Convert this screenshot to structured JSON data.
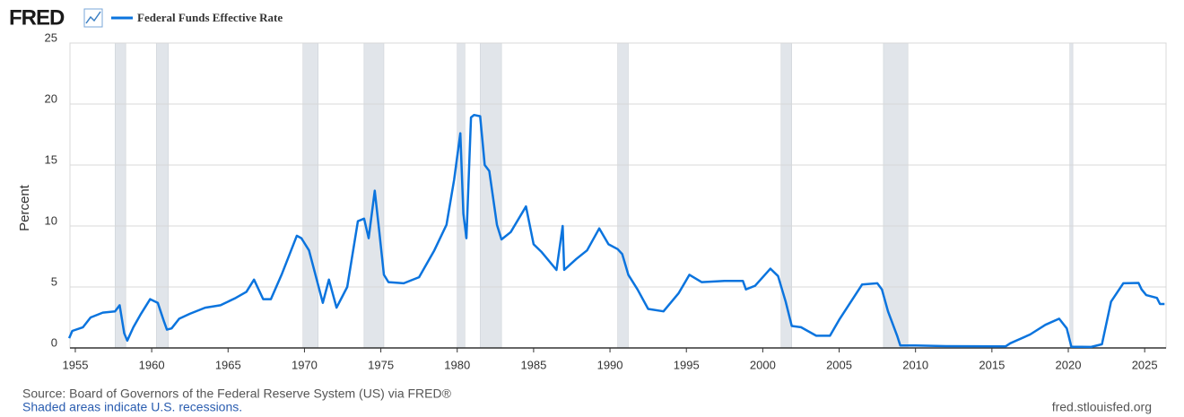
{
  "logo": "FRED",
  "chart_data": {
    "type": "line",
    "y_label": "Percent",
    "xlim": [
      1954.65,
      2026.4
    ],
    "ylim": [
      0,
      25
    ],
    "xticks": [
      1955,
      1960,
      1965,
      1970,
      1975,
      1980,
      1985,
      1990,
      1995,
      2000,
      2005,
      2010,
      2015,
      2020,
      2025
    ],
    "yticks": [
      0,
      5,
      10,
      15,
      20,
      25
    ],
    "grid": true,
    "recessions": [
      [
        1957.6,
        1958.3
      ],
      [
        1960.3,
        1961.1
      ],
      [
        1969.9,
        1970.9
      ],
      [
        1973.9,
        1975.2
      ],
      [
        1980.0,
        1980.5
      ],
      [
        1981.5,
        1982.9
      ],
      [
        1990.5,
        1991.2
      ],
      [
        2001.2,
        2001.9
      ],
      [
        2007.9,
        2009.5
      ],
      [
        2020.1,
        2020.3
      ]
    ],
    "recession_color": "#e1e5ea",
    "x": [
      1954.6,
      1954.8,
      1955.5,
      1956,
      1956.8,
      1957.6,
      1957.9,
      1958.2,
      1958.4,
      1958.8,
      1959.3,
      1959.9,
      1960.4,
      1960.8,
      1961.0,
      1961.3,
      1961.8,
      1962.5,
      1963.5,
      1964.5,
      1965.5,
      1966.2,
      1966.7,
      1967.3,
      1967.8,
      1968.5,
      1969.5,
      1969.8,
      1970.3,
      1970.8,
      1971.2,
      1971.6,
      1972.1,
      1972.8,
      1973.5,
      1973.9,
      1974.2,
      1974.6,
      1974.9,
      1975.2,
      1975.5,
      1976.5,
      1977.5,
      1978.5,
      1979.3,
      1979.8,
      1980.2,
      1980.4,
      1980.6,
      1980.9,
      1981.1,
      1981.5,
      1981.8,
      1982.1,
      1982.6,
      1982.9,
      1983.5,
      1984.5,
      1985.0,
      1985.5,
      1986.5,
      1986.9,
      1987.0,
      1987.8,
      1988.5,
      1989.3,
      1989.9,
      1990.5,
      1990.8,
      1991.2,
      1991.8,
      1992.5,
      1993.5,
      1994.5,
      1995.2,
      1996,
      1997.5,
      1998.7,
      1998.9,
      1999.5,
      2000.5,
      2001.0,
      2001.5,
      2001.9,
      2002.5,
      2003.5,
      2004.4,
      2005.0,
      2006.5,
      2007.5,
      2007.8,
      2008.2,
      2008.8,
      2009.0,
      2010,
      2012,
      2015.9,
      2016.2,
      2017.5,
      2018.5,
      2019.4,
      2019.9,
      2020.2,
      2021.5,
      2022.2,
      2022.8,
      2023.6,
      2024.6,
      2024.8,
      2025.1,
      2025.8,
      2026.0,
      2026.3
    ],
    "series": [
      {
        "name": "Federal Funds Effective Rate",
        "color": "#0b74de",
        "values": [
          0.8,
          1.4,
          1.7,
          2.5,
          2.9,
          3.0,
          3.5,
          1.2,
          0.6,
          1.7,
          2.8,
          4.0,
          3.7,
          2.2,
          1.5,
          1.6,
          2.4,
          2.8,
          3.3,
          3.5,
          4.1,
          4.6,
          5.6,
          4.0,
          4.0,
          6.0,
          9.2,
          9.0,
          8.0,
          5.6,
          3.7,
          5.6,
          3.3,
          5.0,
          10.4,
          10.6,
          9.0,
          12.9,
          9.5,
          6.0,
          5.4,
          5.3,
          5.8,
          8.0,
          10.1,
          13.8,
          17.6,
          11.0,
          9.0,
          18.9,
          19.1,
          19.0,
          15.0,
          14.5,
          10.1,
          8.9,
          9.5,
          11.6,
          8.5,
          7.9,
          6.4,
          10.0,
          6.4,
          7.3,
          8.0,
          9.8,
          8.5,
          8.1,
          7.7,
          6.0,
          4.8,
          3.2,
          3.0,
          4.5,
          6.0,
          5.4,
          5.5,
          5.5,
          4.8,
          5.1,
          6.5,
          5.9,
          3.8,
          1.8,
          1.7,
          1.0,
          1.0,
          2.3,
          5.2,
          5.3,
          4.8,
          3.0,
          1.0,
          0.2,
          0.2,
          0.15,
          0.13,
          0.38,
          1.1,
          1.9,
          2.4,
          1.6,
          0.1,
          0.08,
          0.3,
          3.8,
          5.3,
          5.33,
          4.8,
          4.33,
          4.1,
          3.6,
          3.6
        ]
      }
    ]
  },
  "source": "Source: Board of Governors of the Federal Reserve System (US) via FRED®",
  "note": "Shaded areas indicate U.S. recessions.",
  "url": "fred.stlouisfed.org"
}
